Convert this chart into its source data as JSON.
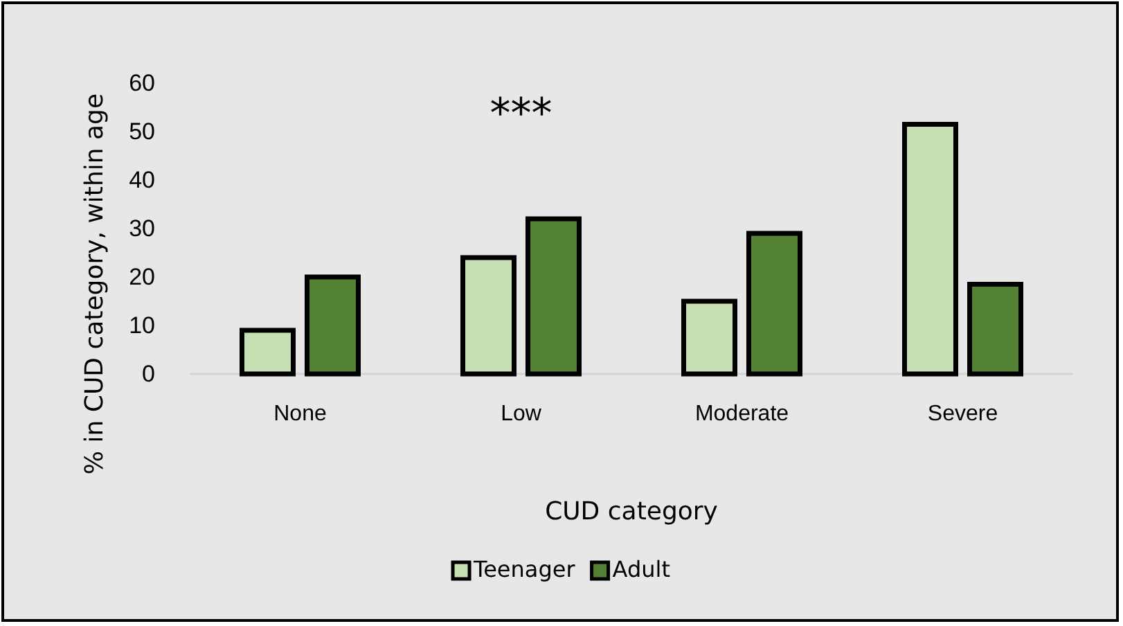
{
  "chart_data": {
    "type": "bar",
    "xlabel": "CUD category",
    "ylabel": "% in CUD category, within age",
    "categories": [
      "None",
      "Low",
      "Moderate",
      "Severe"
    ],
    "series": [
      {
        "name": "Teenager",
        "color": "#c6e0b4",
        "values": [
          9,
          24,
          15,
          51.5
        ]
      },
      {
        "name": "Adult",
        "color": "#548235",
        "values": [
          20,
          32,
          29,
          18.5
        ]
      }
    ],
    "ylim": [
      0,
      60
    ],
    "yticks": [
      0,
      10,
      20,
      30,
      40,
      50,
      60
    ],
    "grid": false,
    "legend": "bottom",
    "annotations": [
      "***"
    ]
  }
}
